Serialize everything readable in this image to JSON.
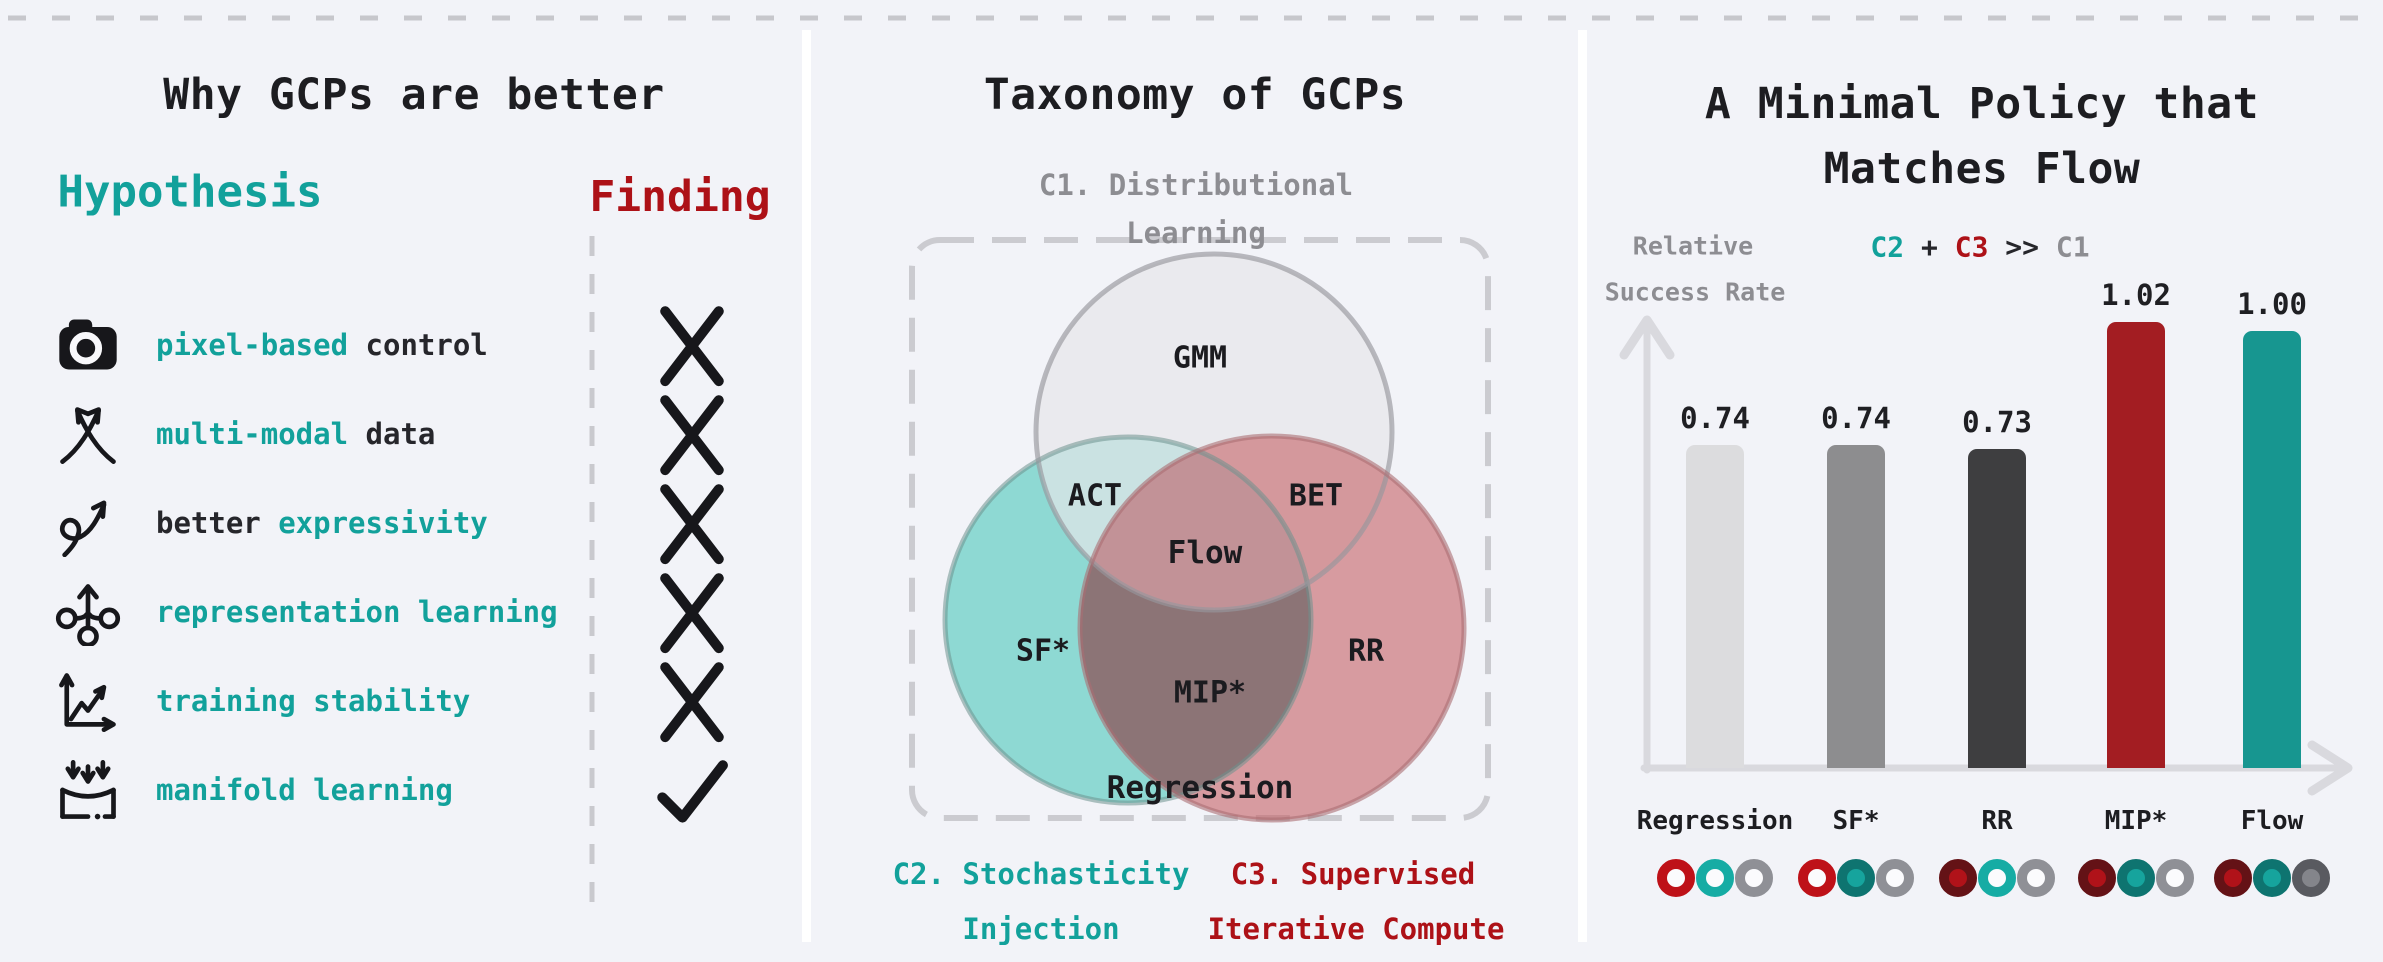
{
  "colors": {
    "background": "#F2F3F8",
    "teal_accent": "#12A19B",
    "red_accent": "#AD1117",
    "gray_accent": "#8D8D92",
    "text_dark": "#1D1D21"
  },
  "left_panel": {
    "title": "Why GCPs are better",
    "hypothesis_label": "Hypothesis",
    "finding_label": "Finding",
    "items": [
      {
        "icon": "camera-icon",
        "segments": [
          {
            "text": "pixel-based",
            "color": "teal"
          },
          {
            "text": " control",
            "color": "dark"
          }
        ],
        "finding": "cross"
      },
      {
        "icon": "crossing-arrows-icon",
        "segments": [
          {
            "text": "multi-modal",
            "color": "teal"
          },
          {
            "text": " data",
            "color": "dark"
          }
        ],
        "finding": "cross"
      },
      {
        "icon": "squiggle-arrow-icon",
        "segments": [
          {
            "text": "better ",
            "color": "dark"
          },
          {
            "text": "expressivity",
            "color": "teal"
          }
        ],
        "finding": "cross"
      },
      {
        "icon": "branching-icon",
        "segments": [
          {
            "text": "representation learning",
            "color": "teal"
          }
        ],
        "finding": "cross"
      },
      {
        "icon": "line-chart-icon",
        "segments": [
          {
            "text": "training stability",
            "color": "teal"
          }
        ],
        "finding": "cross"
      },
      {
        "icon": "manifold-icon",
        "segments": [
          {
            "text": "manifold learning",
            "color": "teal"
          }
        ],
        "finding": "check"
      }
    ]
  },
  "middle_panel": {
    "title": "Taxonomy of GCPs",
    "c1_line1": "C1. Distributional",
    "c1_line2": "Learning",
    "venn": {
      "gmm": "GMM",
      "act": "ACT",
      "bet": "BET",
      "flow": "Flow",
      "sf": "SF*",
      "mip": "MIP*",
      "rr": "RR",
      "regression": "Regression"
    },
    "c2_line1": "C2. Stochasticity",
    "c2_line2": "Injection",
    "c3_line1": "C3. Supervised",
    "c3_line2": "Iterative Compute"
  },
  "right_panel": {
    "title_line1": "A Minimal Policy that",
    "title_line2": "Matches Flow",
    "ylabel_line1": "Relative",
    "ylabel_line2": "Success Rate",
    "annotation_segments": [
      {
        "text": "C2",
        "color": "teal"
      },
      {
        "text": " + ",
        "color": "dark"
      },
      {
        "text": "C3",
        "color": "red"
      },
      {
        "text": " >> ",
        "color": "dark"
      },
      {
        "text": "C1",
        "color": "gray"
      }
    ]
  },
  "chart_data": {
    "type": "bar",
    "title": "A Minimal Policy that Matches Flow",
    "ylabel": "Relative Success Rate",
    "annotation": "C2 + C3 >> C1",
    "categories": [
      "Regression",
      "SF*",
      "RR",
      "MIP*",
      "Flow"
    ],
    "values": [
      0.74,
      0.74,
      0.73,
      1.02,
      1.0
    ],
    "value_labels": [
      "0.74",
      "0.74",
      "0.73",
      "1.02",
      "1.00"
    ],
    "bar_colors": [
      "#DCDCDE",
      "#8D8D8F",
      "#3E3E40",
      "#A31D22",
      "#179690"
    ],
    "ylim": [
      0,
      1.1
    ],
    "grid": false,
    "legend_dot_order": [
      "C3",
      "C2",
      "C1"
    ],
    "criteria_colors": {
      "C3": "#BE1118",
      "C2": "#16ACA4",
      "C1": "#8F9096"
    },
    "category_criteria": [
      {
        "category": "Regression",
        "C3": false,
        "C2": false,
        "C1": false
      },
      {
        "category": "SF*",
        "C3": false,
        "C2": true,
        "C1": false
      },
      {
        "category": "RR",
        "C3": true,
        "C2": false,
        "C1": false
      },
      {
        "category": "MIP*",
        "C3": true,
        "C2": true,
        "C1": false
      },
      {
        "category": "Flow",
        "C3": true,
        "C2": true,
        "C1": true
      }
    ]
  }
}
